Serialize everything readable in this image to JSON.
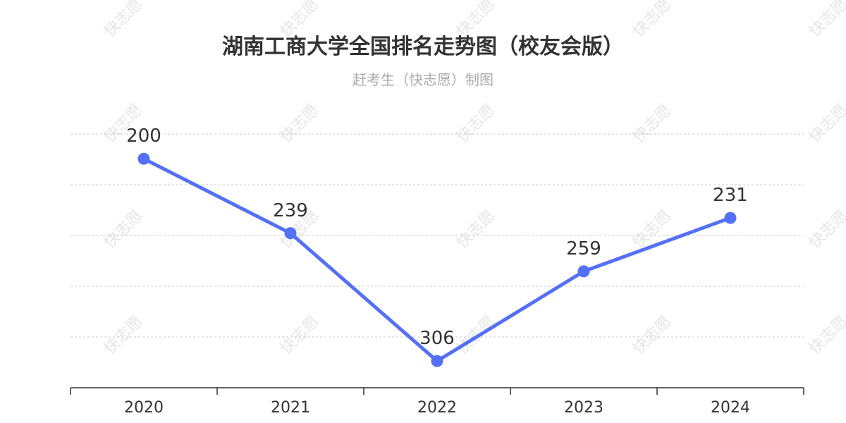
{
  "watermark": "快志愿",
  "chart_data": {
    "type": "line",
    "title": "湖南工商大学全国排名走势图（校友会版）",
    "subtitle": "赶考生（快志愿）制图",
    "categories": [
      "2020",
      "2021",
      "2022",
      "2023",
      "2024"
    ],
    "series": [
      {
        "values": [
          200,
          239,
          306,
          259,
          231
        ]
      }
    ],
    "y_inverted": true,
    "ylim": [
      187,
      320
    ],
    "grid": true,
    "colors": {
      "line": "#5470f6"
    }
  }
}
